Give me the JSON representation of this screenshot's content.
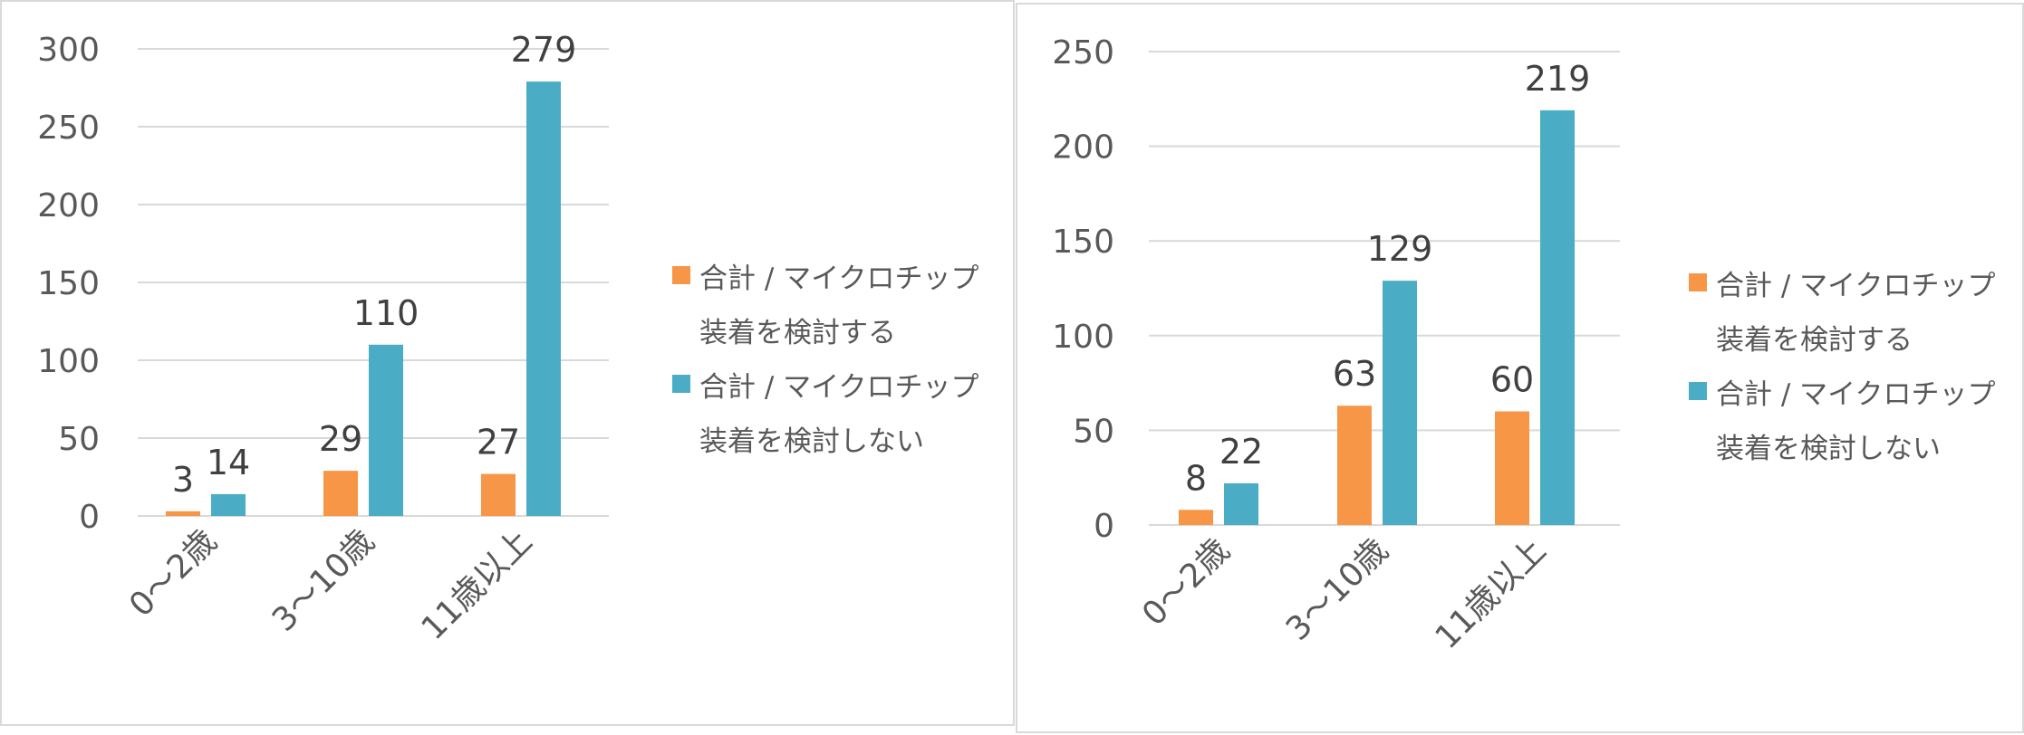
{
  "colors": {
    "series1": "#F79646",
    "series2": "#4BACC6",
    "grid": "#d9d9d9",
    "text": "#595959"
  },
  "chart_data": [
    {
      "type": "bar",
      "title": "",
      "xlabel": "",
      "ylabel": "",
      "categories": [
        "0～2歳",
        "3～10歳",
        "11歳以上"
      ],
      "ylim": [
        0,
        300
      ],
      "yticks": [
        0,
        50,
        100,
        150,
        200,
        250,
        300
      ],
      "grid": true,
      "legend_position": "right",
      "series": [
        {
          "name": "合計 / マイクロチップ装着を検討する",
          "legend_lines": [
            "合計 / マイクロチップ",
            "装着を検討する"
          ],
          "values": [
            3,
            29,
            27
          ],
          "color": "#F79646"
        },
        {
          "name": "合計 / マイクロチップ装着を検討しない",
          "legend_lines": [
            "合計 / マイクロチップ",
            "装着を検討しない"
          ],
          "values": [
            14,
            110,
            279
          ],
          "color": "#4BACC6"
        }
      ]
    },
    {
      "type": "bar",
      "title": "",
      "xlabel": "",
      "ylabel": "",
      "categories": [
        "0～2歳",
        "3～10歳",
        "11歳以上"
      ],
      "ylim": [
        0,
        250
      ],
      "yticks": [
        0,
        50,
        100,
        150,
        200,
        250
      ],
      "grid": true,
      "legend_position": "right",
      "series": [
        {
          "name": "合計 / マイクロチップ装着を検討する",
          "legend_lines": [
            "合計 / マイクロチップ",
            "装着を検討する"
          ],
          "values": [
            8,
            63,
            60
          ],
          "color": "#F79646"
        },
        {
          "name": "合計 / マイクロチップ装着を検討しない",
          "legend_lines": [
            "合計 / マイクロチップ",
            "装着を検討しない"
          ],
          "values": [
            22,
            129,
            219
          ],
          "color": "#4BACC6"
        }
      ]
    }
  ]
}
